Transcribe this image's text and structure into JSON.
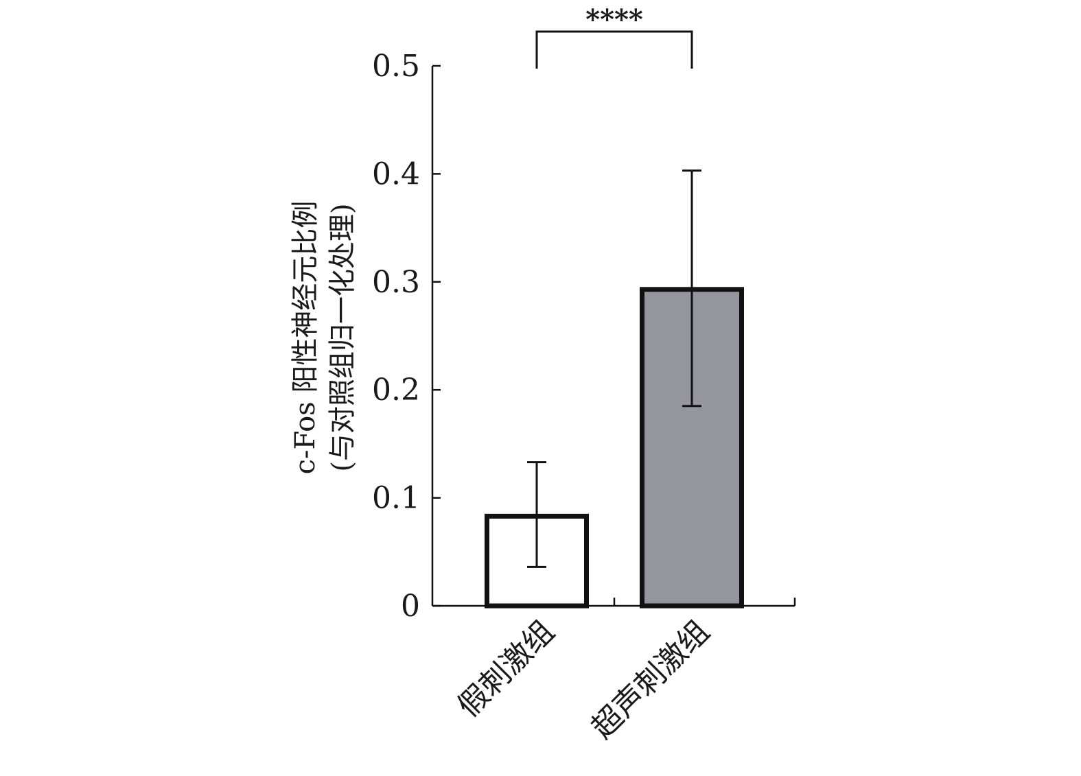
{
  "chart_data": {
    "type": "bar",
    "categories": [
      "假刺激组",
      "超声刺激组"
    ],
    "values": [
      0.083,
      0.293
    ],
    "error_upper": [
      0.133,
      0.403
    ],
    "error_lower": [
      0.036,
      0.185
    ],
    "ylim": [
      0,
      0.5
    ],
    "yticks": [
      0,
      0.1,
      0.2,
      0.3,
      0.4,
      0.5
    ],
    "ytick_labels": [
      "0",
      "0.1",
      "0.2",
      "0.3",
      "0.4",
      "0.5"
    ],
    "ylabel_line1": "c-Fos 阳性神经元比例",
    "ylabel_line2": "(与对照组归一化处理)",
    "xlabel": "",
    "title": "",
    "significance": {
      "between": [
        0,
        1
      ],
      "label": "****"
    },
    "bar_fills": [
      "#ffffff",
      "#94959d"
    ],
    "bar_stroke": "#111111",
    "grid": false
  }
}
